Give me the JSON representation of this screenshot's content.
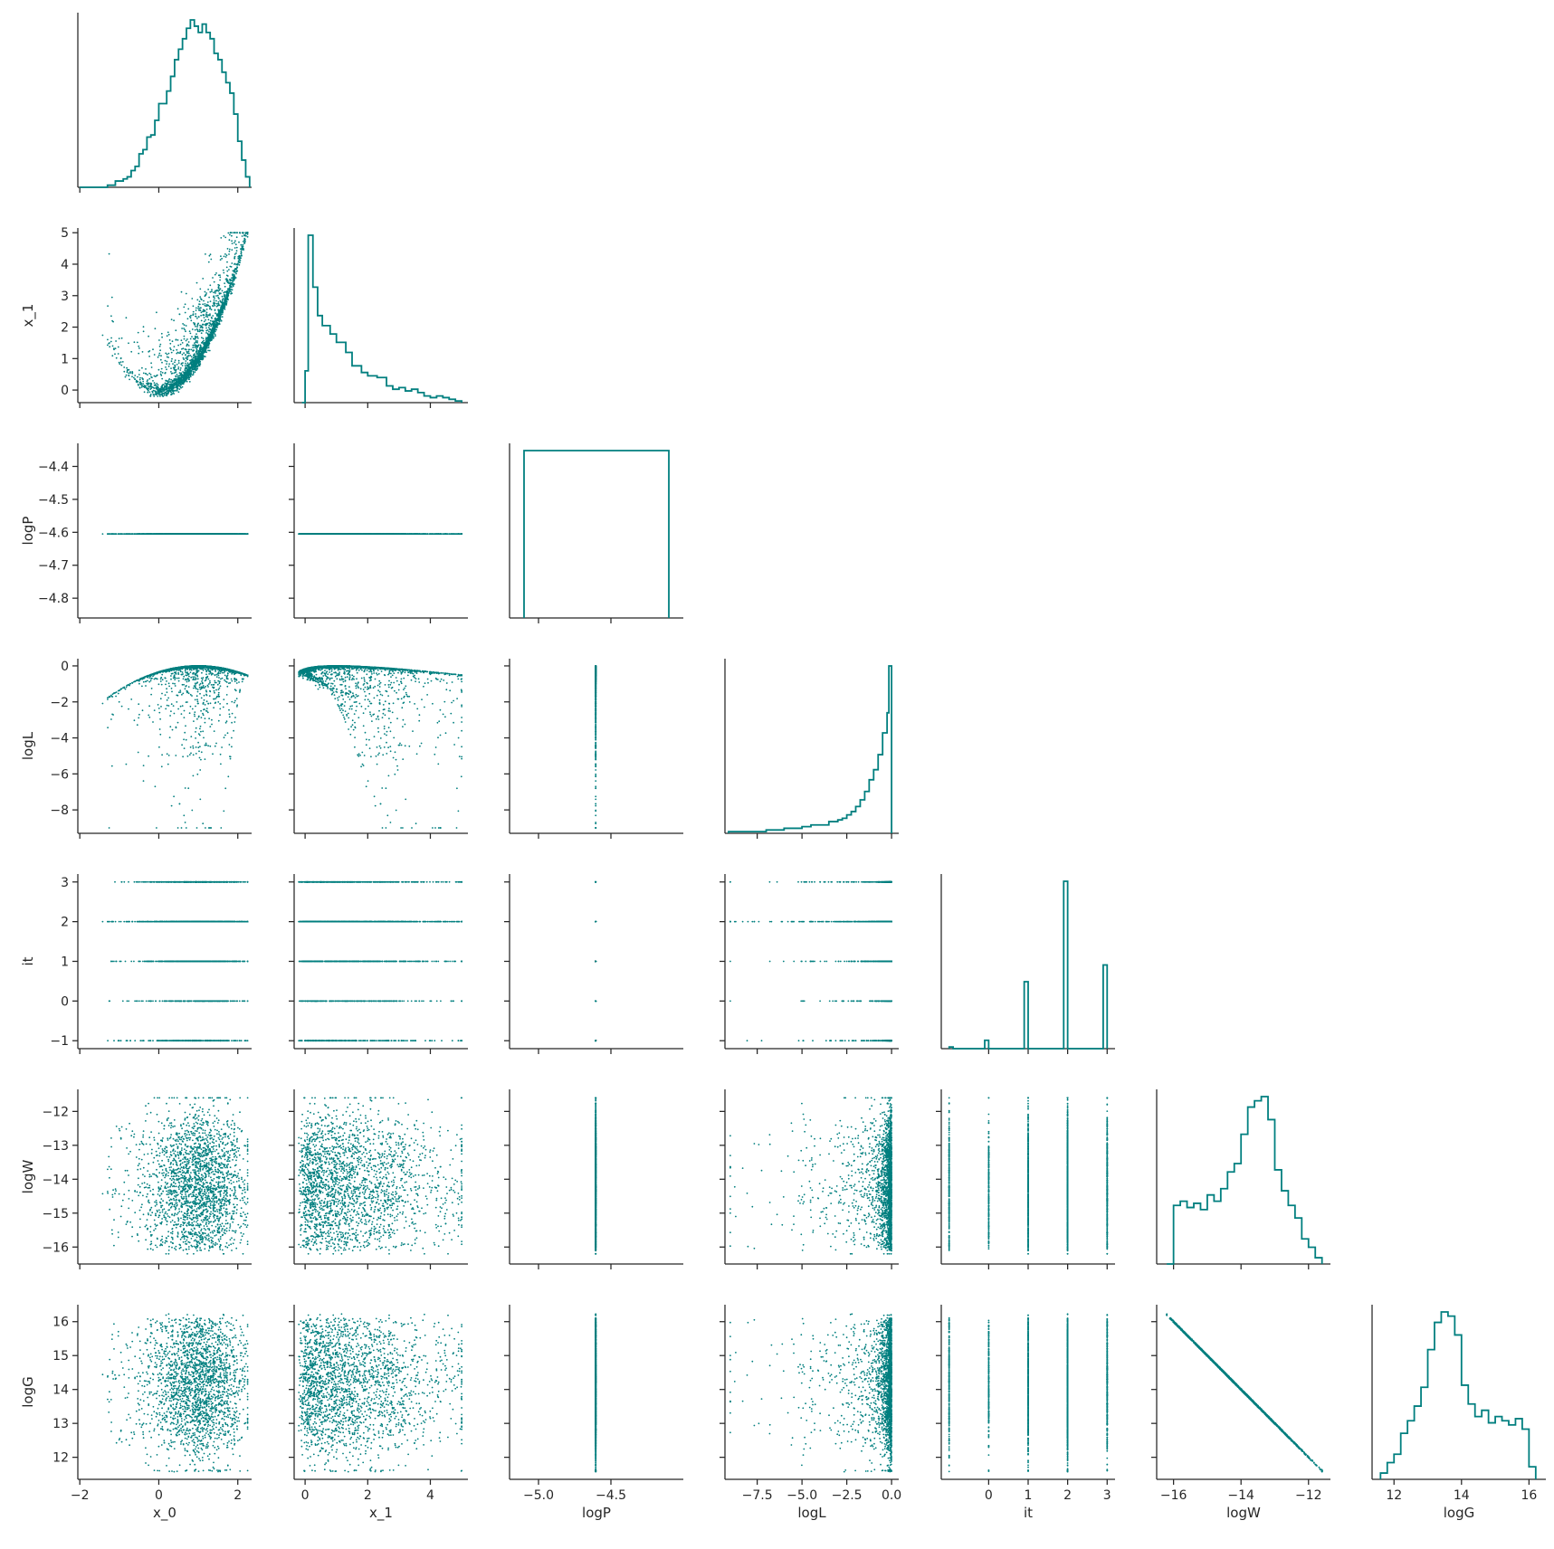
{
  "chart_data": {
    "type": "pairplot",
    "layout": "corner",
    "color": "#007f7f",
    "variables": [
      "x_0",
      "x_1",
      "logP",
      "logL",
      "it",
      "logW",
      "logG"
    ],
    "axis_labels": {
      "x": [
        "x_0",
        "x_1",
        "logP",
        "logL",
        "it",
        "logW",
        "logG"
      ],
      "y": [
        "",
        "x_1",
        "logP",
        "logL",
        "it",
        "logW",
        "logG"
      ]
    },
    "ranges": {
      "x_0": [
        -2.05,
        2.35
      ],
      "x_1": [
        -0.35,
        5.2
      ],
      "logP": [
        -5.2,
        -4.0
      ],
      "logL": [
        -9.3,
        0.4
      ],
      "it": [
        -1.2,
        3.2
      ],
      "logW": [
        -16.5,
        -11.35
      ],
      "logG": [
        11.35,
        16.5
      ]
    },
    "y_ranges": {
      "x_1": [
        -0.4,
        5.15
      ],
      "logP": [
        -4.86,
        -4.33
      ],
      "logL": [
        -9.3,
        0.4
      ],
      "it": [
        -1.2,
        3.2
      ],
      "logW": [
        -16.5,
        -11.35
      ],
      "logG": [
        11.35,
        16.5
      ]
    },
    "ticks": {
      "x_0": [
        -2,
        0,
        2
      ],
      "x_1": [
        0,
        2,
        4
      ],
      "logP": [
        -5.0,
        -4.5
      ],
      "logL": [
        -7.5,
        -5.0,
        -2.5,
        0.0
      ],
      "it": [
        0,
        1,
        2,
        3
      ],
      "logW": [
        -16,
        -14,
        -12
      ],
      "logG": [
        12,
        14,
        16
      ]
    },
    "tick_labels": {
      "x_0": [
        "−2",
        "0",
        "2"
      ],
      "x_1": [
        "0",
        "2",
        "4"
      ],
      "logP": [
        "−5.0",
        "−4.5"
      ],
      "logL": [
        "−7.5",
        "−5.0",
        "−2.5",
        "0.0"
      ],
      "it": [
        "0",
        "1",
        "2",
        "3"
      ],
      "logW": [
        "−16",
        "−14",
        "−12"
      ],
      "logG": [
        "12",
        "14",
        "16"
      ]
    },
    "y_ticks": {
      "x_1": [
        0,
        1,
        2,
        3,
        4,
        5
      ],
      "logP": [
        -4.8,
        -4.7,
        -4.6,
        -4.5,
        -4.4
      ],
      "logL": [
        -8,
        -6,
        -4,
        -2,
        0
      ],
      "it": [
        -1,
        0,
        1,
        2,
        3
      ],
      "logW": [
        -16,
        -15,
        -14,
        -13,
        -12
      ],
      "logG": [
        12,
        13,
        14,
        15,
        16
      ]
    },
    "y_tick_labels": {
      "x_1": [
        "0",
        "1",
        "2",
        "3",
        "4",
        "5"
      ],
      "logP": [
        "−4.8",
        "−4.7",
        "−4.6",
        "−4.5",
        "−4.4"
      ],
      "logL": [
        "−8",
        "−6",
        "−4",
        "−2",
        "0"
      ],
      "it": [
        "−1",
        "0",
        "1",
        "2",
        "3"
      ],
      "logW": [
        "−16",
        "−15",
        "−14",
        "−13",
        "−12"
      ],
      "logG": [
        "12",
        "13",
        "14",
        "15",
        "16"
      ]
    },
    "histograms": {
      "x_0": {
        "edges": [
          -2.0,
          -1.9,
          -1.8,
          -1.7,
          -1.6,
          -1.5,
          -1.4,
          -1.3,
          -1.2,
          -1.1,
          -1.0,
          -0.9,
          -0.8,
          -0.7,
          -0.6,
          -0.5,
          -0.4,
          -0.3,
          -0.2,
          -0.1,
          0.0,
          0.1,
          0.2,
          0.3,
          0.4,
          0.5,
          0.6,
          0.7,
          0.8,
          0.9,
          1.0,
          1.1,
          1.2,
          1.3,
          1.4,
          1.5,
          1.6,
          1.7,
          1.8,
          1.9,
          2.0,
          2.1,
          2.2,
          2.3
        ],
        "counts": [
          0,
          0,
          0,
          0,
          0,
          0,
          0,
          1,
          1,
          3,
          3,
          4,
          5,
          8,
          10,
          16,
          18,
          24,
          25,
          32,
          40,
          40,
          46,
          53,
          61,
          66,
          71,
          76,
          80,
          77,
          74,
          78,
          74,
          71,
          64,
          61,
          55,
          50,
          45,
          35,
          22,
          13,
          5
        ]
      },
      "x_1": {
        "edges": [
          -0.1,
          0.0,
          0.1,
          0.25,
          0.4,
          0.55,
          0.8,
          1.0,
          1.3,
          1.5,
          1.8,
          2.0,
          2.3,
          2.6,
          2.8,
          3.0,
          3.2,
          3.4,
          3.6,
          3.8,
          4.0,
          4.2,
          4.4,
          4.6,
          4.8,
          5.0
        ],
        "counts": [
          0,
          19,
          100,
          69,
          52,
          46,
          41,
          36,
          30,
          22,
          18,
          16,
          15,
          10,
          8,
          9,
          7,
          8,
          6,
          4,
          3,
          4,
          3,
          2,
          1
        ]
      },
      "logP": {
        "edges": [
          -5.1,
          -4.1
        ],
        "counts": [
          100
        ]
      },
      "logL": {
        "edges": [
          -9.1,
          -8.0,
          -7.0,
          -6.0,
          -5.0,
          -4.5,
          -4.0,
          -3.5,
          -3.0,
          -2.75,
          -2.5,
          -2.25,
          -2.0,
          -1.75,
          -1.5,
          -1.25,
          -1.0,
          -0.75,
          -0.5,
          -0.25,
          -0.15,
          0.0
        ],
        "counts": [
          1,
          1,
          2,
          3,
          4,
          5,
          5,
          7,
          8,
          9,
          11,
          13,
          16,
          20,
          25,
          32,
          38,
          47,
          60,
          72,
          100
        ]
      },
      "it": {
        "edges": [
          -1.0,
          -0.9,
          -0.1,
          0.0,
          0.9,
          1.0,
          1.9,
          2.0,
          2.9,
          3.0
        ],
        "counts": [
          1,
          0,
          5,
          0,
          40,
          0,
          100,
          0,
          50
        ]
      },
      "logW": {
        "edges": [
          -16.2,
          -16.0,
          -15.8,
          -15.6,
          -15.4,
          -15.2,
          -15.0,
          -14.8,
          -14.6,
          -14.4,
          -14.2,
          -14.0,
          -13.8,
          -13.6,
          -13.4,
          -13.2,
          -13.0,
          -12.8,
          -12.6,
          -12.4,
          -12.2,
          -12.0,
          -11.8,
          -11.6
        ],
        "counts": [
          0,
          28,
          30,
          27,
          29,
          26,
          33,
          30,
          36,
          44,
          48,
          62,
          75,
          78,
          80,
          69,
          45,
          35,
          28,
          22,
          12,
          8,
          3
        ]
      },
      "logG": {
        "edges": [
          11.6,
          11.8,
          12.0,
          12.2,
          12.4,
          12.6,
          12.8,
          13.0,
          13.2,
          13.4,
          13.6,
          13.8,
          14.0,
          14.2,
          14.4,
          14.6,
          14.8,
          15.0,
          15.2,
          15.4,
          15.6,
          15.8,
          16.0,
          16.2
        ],
        "counts": [
          3,
          8,
          12,
          22,
          28,
          35,
          44,
          62,
          75,
          80,
          78,
          69,
          45,
          36,
          30,
          33,
          27,
          30,
          28,
          26,
          29,
          24,
          6
        ]
      }
    },
    "scatter_relations": {
      "x_1_vs_x_0": "x_1 ≈ x_0² with spread",
      "logP": "constant at −4.605",
      "logL_vs_x_0": "logL ≈ −((1−x_0)² + 100(x_1−x_0²)²) scaled",
      "it": "discrete values −1, 0, 1, 2, 3",
      "logW_vs_logG": "logG = −logW + ~0.0"
    }
  }
}
